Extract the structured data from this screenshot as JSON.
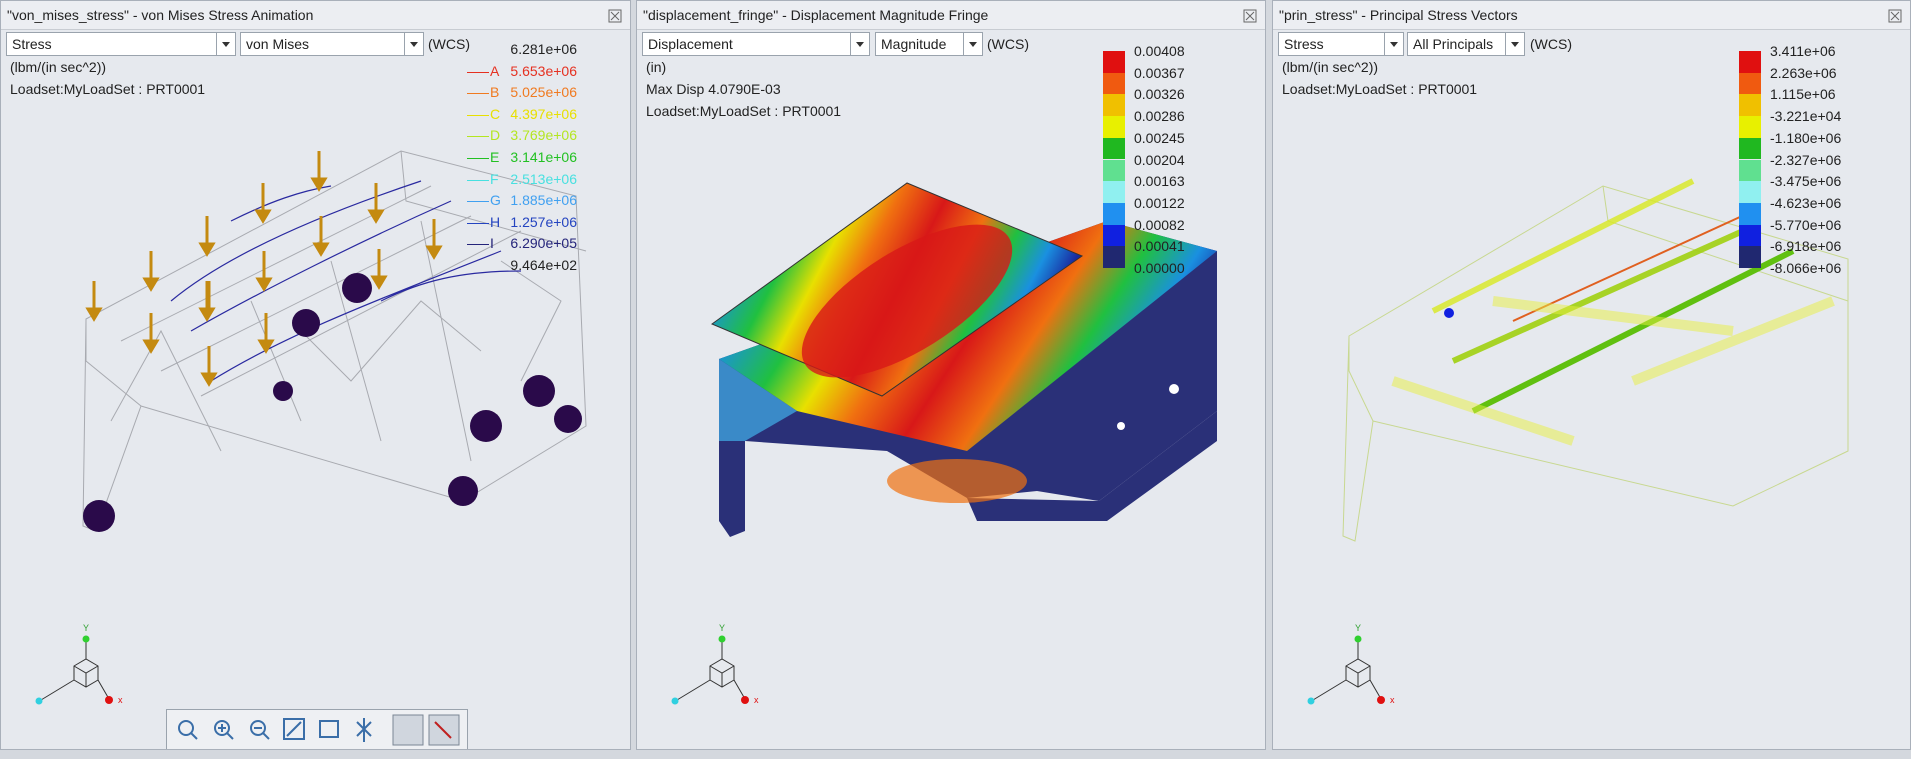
{
  "panels": [
    {
      "title": "\"von_mises_stress\" - von Mises Stress Animation",
      "dropdowns": [
        "Stress",
        "von Mises"
      ],
      "csys": "(WCS)",
      "info": [
        "(lbm/(in sec^2))",
        "Loadset:MyLoadSet :  PRT0001"
      ],
      "legend": {
        "max": "6.281e+06",
        "levels": [
          {
            "letter": "A",
            "value": "5.653e+06",
            "color": "#e53020"
          },
          {
            "letter": "B",
            "value": "5.025e+06",
            "color": "#f07a20"
          },
          {
            "letter": "C",
            "value": "4.397e+06",
            "color": "#e8e000"
          },
          {
            "letter": "D",
            "value": "3.769e+06",
            "color": "#b4e620"
          },
          {
            "letter": "E",
            "value": "3.141e+06",
            "color": "#22c022"
          },
          {
            "letter": "F",
            "value": "2.513e+06",
            "color": "#48e0e0"
          },
          {
            "letter": "G",
            "value": "1.885e+06",
            "color": "#40a0f0"
          },
          {
            "letter": "H",
            "value": "1.257e+06",
            "color": "#2444c0"
          },
          {
            "letter": "I",
            "value": "6.290e+05",
            "color": "#24247a"
          }
        ],
        "min": "9.464e+02"
      },
      "triad": {
        "y": "Y",
        "x": "x"
      }
    },
    {
      "title": "\"displacement_fringe\" - Displacement Magnitude Fringe",
      "dropdowns": [
        "Displacement",
        "Magnitude"
      ],
      "csys": "(WCS)",
      "info": [
        "(in)",
        "Max Disp  4.0790E-03",
        "Loadset:MyLoadSet :  PRT0001"
      ],
      "legend": {
        "labels": [
          "0.00408",
          "0.00367",
          "0.00326",
          "0.00286",
          "0.00245",
          "0.00204",
          "0.00163",
          "0.00122",
          "0.00082",
          "0.00041",
          "0.00000"
        ],
        "colors": [
          "#e01010",
          "#f05a10",
          "#f0c000",
          "#e8f000",
          "#20b820",
          "#60e090",
          "#90f0f0",
          "#2090f0",
          "#1020e0",
          "#202870"
        ]
      },
      "triad": {
        "y": "Y",
        "x": "x"
      }
    },
    {
      "title": "\"prin_stress\" - Principal Stress Vectors",
      "dropdowns": [
        "Stress",
        "All Principals"
      ],
      "csys": "(WCS)",
      "info": [
        "(lbm/(in sec^2))",
        "Loadset:MyLoadSet :  PRT0001"
      ],
      "legend": {
        "labels": [
          "3.411e+06",
          "2.263e+06",
          "1.115e+06",
          "-3.221e+04",
          "-1.180e+06",
          "-2.327e+06",
          "-3.475e+06",
          "-4.623e+06",
          "-5.770e+06",
          "-6.918e+06",
          "-8.066e+06"
        ],
        "colors": [
          "#e01010",
          "#f05a10",
          "#f0c000",
          "#e8f000",
          "#20b820",
          "#60e090",
          "#90f0f0",
          "#2090f0",
          "#1020e0",
          "#202870"
        ]
      },
      "triad": {
        "y": "Y",
        "x": "x"
      }
    }
  ]
}
